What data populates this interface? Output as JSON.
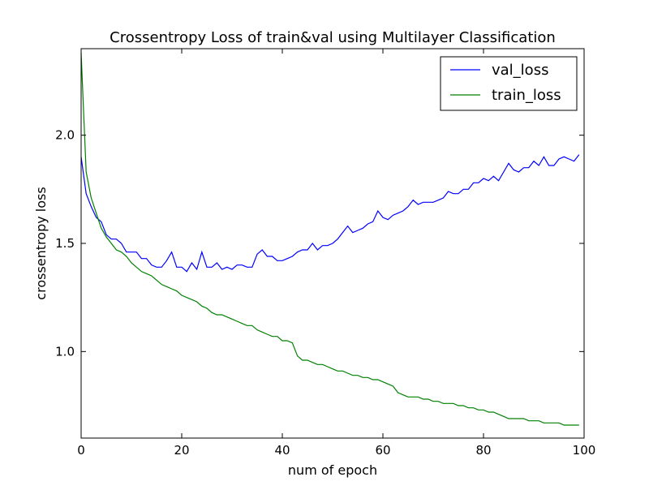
{
  "chart_data": {
    "type": "line",
    "title": "Crossentropy Loss of train&val using Multilayer Classification",
    "xlabel": "num of epoch",
    "ylabel": "crossentropy loss",
    "xlim": [
      0,
      100
    ],
    "ylim": [
      0.6,
      2.4
    ],
    "xticks": [
      0,
      20,
      40,
      60,
      80,
      100
    ],
    "xtick_labels": [
      "0",
      "20",
      "40",
      "60",
      "80",
      "100"
    ],
    "yticks": [
      1.0,
      1.5,
      2.0
    ],
    "ytick_labels": [
      "1.0",
      "1.5",
      "2.0"
    ],
    "grid": false,
    "legend_position": "top-right",
    "x": [
      0,
      1,
      2,
      3,
      4,
      5,
      6,
      7,
      8,
      9,
      10,
      11,
      12,
      13,
      14,
      15,
      16,
      17,
      18,
      19,
      20,
      21,
      22,
      23,
      24,
      25,
      26,
      27,
      28,
      29,
      30,
      31,
      32,
      33,
      34,
      35,
      36,
      37,
      38,
      39,
      40,
      41,
      42,
      43,
      44,
      45,
      46,
      47,
      48,
      49,
      50,
      51,
      52,
      53,
      54,
      55,
      56,
      57,
      58,
      59,
      60,
      61,
      62,
      63,
      64,
      65,
      66,
      67,
      68,
      69,
      70,
      71,
      72,
      73,
      74,
      75,
      76,
      77,
      78,
      79,
      80,
      81,
      82,
      83,
      84,
      85,
      86,
      87,
      88,
      89,
      90,
      91,
      92,
      93,
      94,
      95,
      96,
      97,
      98,
      99
    ],
    "series": [
      {
        "name": "val_loss",
        "color": "#0000ff",
        "values": [
          1.9,
          1.73,
          1.67,
          1.62,
          1.6,
          1.54,
          1.52,
          1.52,
          1.5,
          1.46,
          1.46,
          1.46,
          1.43,
          1.43,
          1.4,
          1.39,
          1.39,
          1.42,
          1.46,
          1.39,
          1.39,
          1.37,
          1.41,
          1.38,
          1.46,
          1.39,
          1.39,
          1.41,
          1.38,
          1.39,
          1.38,
          1.4,
          1.4,
          1.39,
          1.39,
          1.45,
          1.47,
          1.44,
          1.44,
          1.42,
          1.42,
          1.43,
          1.44,
          1.46,
          1.47,
          1.47,
          1.5,
          1.47,
          1.49,
          1.49,
          1.5,
          1.52,
          1.55,
          1.58,
          1.55,
          1.56,
          1.57,
          1.59,
          1.6,
          1.65,
          1.62,
          1.61,
          1.63,
          1.64,
          1.65,
          1.67,
          1.7,
          1.68,
          1.69,
          1.69,
          1.69,
          1.7,
          1.71,
          1.74,
          1.73,
          1.73,
          1.75,
          1.75,
          1.78,
          1.78,
          1.8,
          1.79,
          1.81,
          1.79,
          1.83,
          1.87,
          1.84,
          1.83,
          1.85,
          1.85,
          1.88,
          1.86,
          1.9,
          1.86,
          1.86,
          1.89,
          1.9,
          1.89,
          1.88,
          1.91
        ]
      },
      {
        "name": "train_loss",
        "color": "#008000",
        "values": [
          2.38,
          1.83,
          1.71,
          1.64,
          1.57,
          1.53,
          1.5,
          1.47,
          1.46,
          1.44,
          1.41,
          1.39,
          1.37,
          1.36,
          1.35,
          1.33,
          1.31,
          1.3,
          1.29,
          1.28,
          1.26,
          1.25,
          1.24,
          1.23,
          1.21,
          1.2,
          1.18,
          1.17,
          1.17,
          1.16,
          1.15,
          1.14,
          1.13,
          1.12,
          1.12,
          1.1,
          1.09,
          1.08,
          1.07,
          1.07,
          1.05,
          1.05,
          1.04,
          0.98,
          0.96,
          0.96,
          0.95,
          0.94,
          0.94,
          0.93,
          0.92,
          0.91,
          0.91,
          0.9,
          0.89,
          0.89,
          0.88,
          0.88,
          0.87,
          0.87,
          0.86,
          0.85,
          0.84,
          0.81,
          0.8,
          0.79,
          0.79,
          0.79,
          0.78,
          0.78,
          0.77,
          0.77,
          0.76,
          0.76,
          0.76,
          0.75,
          0.75,
          0.74,
          0.74,
          0.73,
          0.73,
          0.72,
          0.72,
          0.71,
          0.7,
          0.69,
          0.69,
          0.69,
          0.69,
          0.68,
          0.68,
          0.68,
          0.67,
          0.67,
          0.67,
          0.67,
          0.66,
          0.66,
          0.66,
          0.66
        ]
      }
    ]
  }
}
